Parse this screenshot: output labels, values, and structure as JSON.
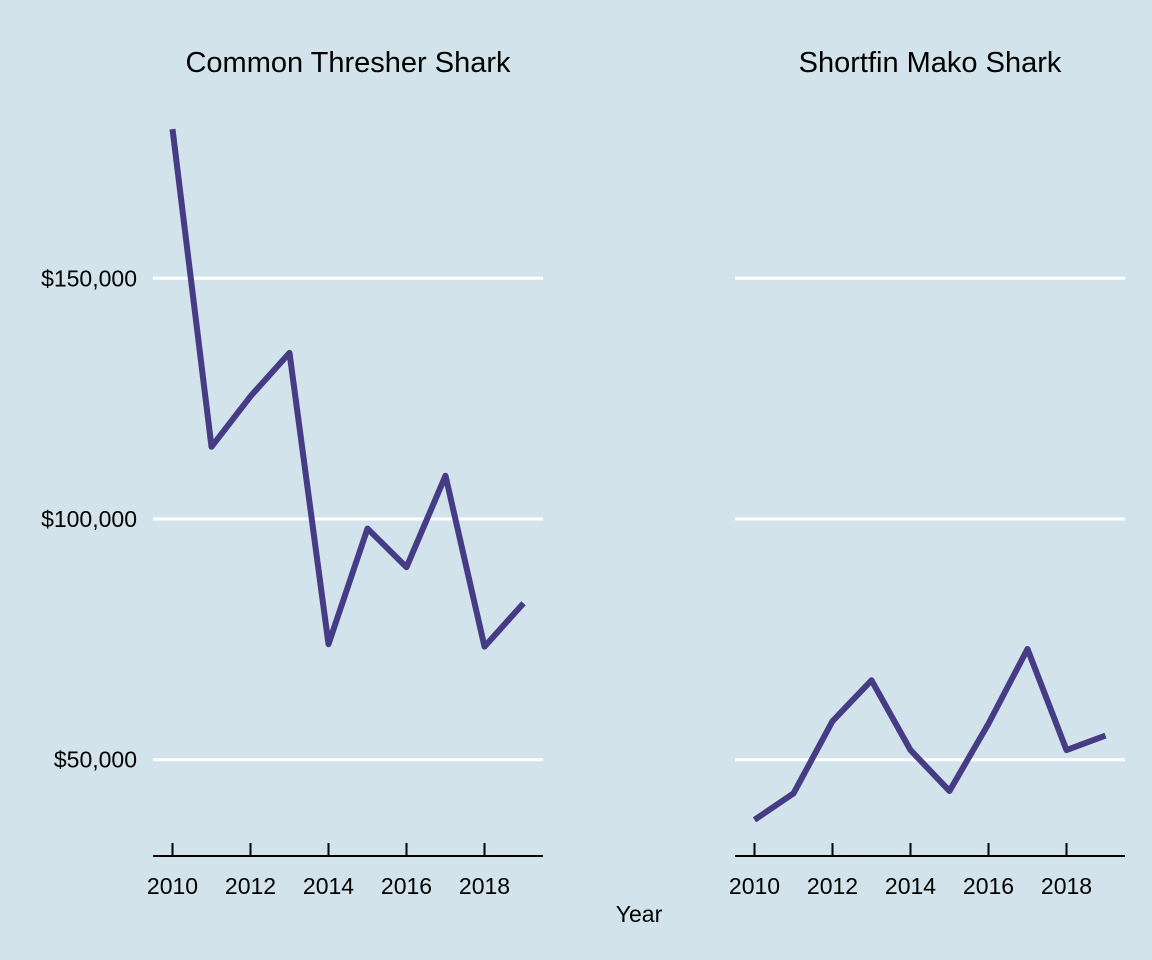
{
  "colors": {
    "background": "#d3e3eb",
    "line": "#463c85",
    "gridline": "#ffffff",
    "axis": "#000000"
  },
  "chart_data": {
    "type": "line",
    "xlabel": "Year",
    "ylabel": "",
    "grid": "horizontal major gridlines",
    "y_tick_values": [
      50000,
      100000,
      150000
    ],
    "y_tick_labels": [
      "$50,000",
      "$100,000",
      "$150,000"
    ],
    "ylim": [
      30000,
      186000
    ],
    "x_tick_values": [
      2010,
      2012,
      2014,
      2016,
      2018
    ],
    "x_tick_labels": [
      "2010",
      "2012",
      "2014",
      "2016",
      "2018"
    ],
    "xlim": [
      2009.5,
      2019.5
    ],
    "panels": [
      {
        "title": "Common Thresher Shark",
        "x": [
          2010,
          2011,
          2012,
          2013,
          2014,
          2015,
          2016,
          2017,
          2018,
          2019
        ],
        "y": [
          181000,
          115000,
          125500,
          134500,
          74000,
          98000,
          90000,
          109000,
          73500,
          82500
        ]
      },
      {
        "title": "Shortfin Mako Shark",
        "x": [
          2010,
          2011,
          2012,
          2013,
          2014,
          2015,
          2016,
          2017,
          2018,
          2019
        ],
        "y": [
          37500,
          43000,
          58000,
          66500,
          52000,
          43500,
          57500,
          73000,
          52000,
          55000
        ]
      }
    ]
  }
}
